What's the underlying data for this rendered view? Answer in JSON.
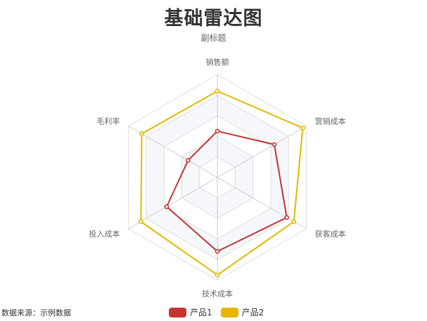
{
  "chart_data": {
    "type": "radar",
    "title": "基础雷达图",
    "subtitle": "副标题",
    "indicators": [
      {
        "name": "销售额",
        "max": 100
      },
      {
        "name": "营销成本",
        "max": 100
      },
      {
        "name": "获客成本",
        "max": 100
      },
      {
        "name": "技术成本",
        "max": 100
      },
      {
        "name": "投入成本",
        "max": 100
      },
      {
        "name": "毛利率",
        "max": 100
      }
    ],
    "series": [
      {
        "name": "产品1",
        "color": "#c23531",
        "values": [
          45,
          64,
          78,
          72,
          57,
          33
        ]
      },
      {
        "name": "产品2",
        "color": "#e6b600",
        "values": [
          84,
          96,
          86,
          95,
          86,
          85
        ]
      }
    ],
    "legend_position": "bottom-center",
    "grid": true
  },
  "footer": {
    "source": "数据来源：示例数据"
  }
}
